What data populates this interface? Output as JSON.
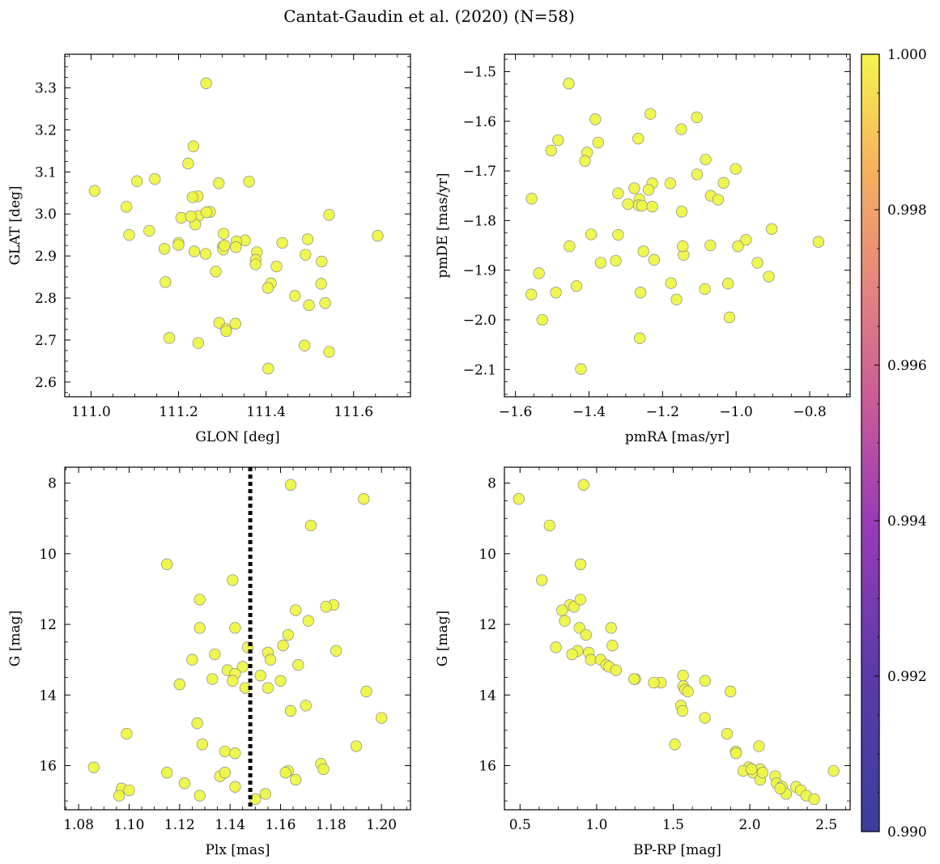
{
  "title": "Cantat-Gaudin et al. (2020) (N=58)",
  "colors": {
    "point": "#eef541",
    "point_edge": "#8a8a8a",
    "vline": "#000000"
  },
  "colorbar": {
    "min": 0.99,
    "max": 1.0,
    "ticks": [
      0.99,
      0.992,
      0.994,
      0.996,
      0.998,
      1.0
    ],
    "tick_labels": [
      "0.990",
      "0.992",
      "0.994",
      "0.996",
      "0.998",
      "1.000"
    ],
    "colormap": "plasma"
  },
  "chart_data": [
    {
      "type": "scatter",
      "xlabel": "GLON [deg]",
      "ylabel": "GLAT [deg]",
      "xlim": [
        110.94,
        111.73
      ],
      "ylim": [
        2.565,
        3.38
      ],
      "xticks": [
        111.0,
        111.2,
        111.4,
        111.6
      ],
      "xtick_labels": [
        "111.0",
        "111.2",
        "111.4",
        "111.6"
      ],
      "yticks": [
        2.6,
        2.7,
        2.8,
        2.9,
        3.0,
        3.1,
        3.2,
        3.3
      ],
      "ytick_labels": [
        "2.6",
        "2.7",
        "2.8",
        "2.9",
        "3.0",
        "3.1",
        "3.2",
        "3.3"
      ],
      "x": [
        111.008,
        111.263,
        111.234,
        111.222,
        111.146,
        111.105,
        111.244,
        111.361,
        111.292,
        111.081,
        111.272,
        111.245,
        111.238,
        111.087,
        111.206,
        111.264,
        111.303,
        111.544,
        111.655,
        111.228,
        111.2,
        111.133,
        111.236,
        111.301,
        111.352,
        111.2,
        111.332,
        111.437,
        111.168,
        111.262,
        111.379,
        111.302,
        111.285,
        111.495,
        111.305,
        111.376,
        111.331,
        111.376,
        111.424,
        111.49,
        111.17,
        111.527,
        111.411,
        111.404,
        111.498,
        111.526,
        111.466,
        111.535,
        111.293,
        111.309,
        111.33,
        111.309,
        111.179,
        111.245,
        111.488,
        111.544,
        111.405,
        111.232
      ],
      "y": [
        3.055,
        3.311,
        3.161,
        3.12,
        3.083,
        3.078,
        3.042,
        3.077,
        3.073,
        3.017,
        3.005,
        2.995,
        2.975,
        2.95,
        2.991,
        3.004,
        2.953,
        2.998,
        2.948,
        2.994,
        2.931,
        2.96,
        2.911,
        2.922,
        2.937,
        2.926,
        2.935,
        2.931,
        2.917,
        2.905,
        2.909,
        2.915,
        2.863,
        2.94,
        2.925,
        2.891,
        2.921,
        2.88,
        2.875,
        2.903,
        2.838,
        2.887,
        2.835,
        2.824,
        2.783,
        2.834,
        2.805,
        2.788,
        2.741,
        2.726,
        2.739,
        2.721,
        2.705,
        2.693,
        2.687,
        2.672,
        2.632,
        3.04
      ],
      "value": 1.0
    },
    {
      "type": "scatter",
      "xlabel": "pmRA [mas/yr]",
      "ylabel": "pmDE [mas/yr]",
      "xlim": [
        -1.63,
        -0.69
      ],
      "ylim": [
        -2.155,
        -1.465
      ],
      "xticks": [
        -1.6,
        -1.4,
        -1.2,
        -1.0,
        -0.8
      ],
      "xtick_labels": [
        "−1.6",
        "−1.4",
        "−1.2",
        "−1.0",
        "−0.8"
      ],
      "yticks": [
        -2.1,
        -2.0,
        -1.9,
        -1.8,
        -1.7,
        -1.6,
        -1.5
      ],
      "ytick_labels": [
        "−2.1",
        "−2.0",
        "−1.9",
        "−1.8",
        "−1.7",
        "−1.6",
        "−1.5"
      ],
      "x": [
        -1.455,
        -1.233,
        -1.107,
        -1.383,
        -1.149,
        -1.484,
        -1.503,
        -1.375,
        -1.405,
        -1.411,
        -1.266,
        -1.083,
        -1.001,
        -1.106,
        -1.228,
        -1.321,
        -1.238,
        -1.277,
        -1.263,
        -1.556,
        -1.148,
        -1.069,
        -1.034,
        -1.049,
        -1.265,
        -1.294,
        -1.256,
        -1.228,
        -1.179,
        -1.143,
        -1.394,
        -0.903,
        -0.776,
        -1.321,
        -0.973,
        -0.995,
        -1.07,
        -1.453,
        -1.252,
        -1.145,
        -1.223,
        -1.368,
        -1.327,
        -0.942,
        -1.536,
        -0.911,
        -1.177,
        -1.085,
        -1.022,
        -1.26,
        -1.49,
        -1.434,
        -1.557,
        -1.162,
        -1.527,
        -1.018,
        -1.262,
        -1.422
      ],
      "y": [
        -1.524,
        -1.585,
        -1.592,
        -1.596,
        -1.616,
        -1.638,
        -1.659,
        -1.643,
        -1.663,
        -1.68,
        -1.635,
        -1.677,
        -1.696,
        -1.707,
        -1.725,
        -1.745,
        -1.738,
        -1.735,
        -1.757,
        -1.756,
        -1.782,
        -1.75,
        -1.724,
        -1.758,
        -1.769,
        -1.767,
        -1.77,
        -1.772,
        -1.725,
        -1.869,
        -1.828,
        -1.817,
        -1.843,
        -1.829,
        -1.839,
        -1.852,
        -1.85,
        -1.852,
        -1.862,
        -1.852,
        -1.879,
        -1.885,
        -1.881,
        -1.885,
        -1.906,
        -1.913,
        -1.926,
        -1.938,
        -1.927,
        -1.945,
        -1.945,
        -1.932,
        -1.949,
        -1.959,
        -2.0,
        -1.995,
        -2.037,
        -2.099
      ],
      "value": 1.0
    },
    {
      "type": "scatter",
      "xlabel": "Plx [mas]",
      "ylabel": "G [mag]",
      "xlim": [
        1.0745,
        1.2115
      ],
      "ylim": [
        17.25,
        7.55
      ],
      "xticks": [
        1.08,
        1.1,
        1.12,
        1.14,
        1.16,
        1.18,
        1.2
      ],
      "xtick_labels": [
        "1.08",
        "1.10",
        "1.12",
        "1.14",
        "1.16",
        "1.18",
        "1.20"
      ],
      "yticks": [
        8,
        10,
        12,
        14,
        16
      ],
      "ytick_labels": [
        "8",
        "10",
        "12",
        "14",
        "16"
      ],
      "vline": {
        "x": 1.148,
        "style": "dotted"
      },
      "x": [
        1.164,
        1.193,
        1.172,
        1.115,
        1.141,
        1.181,
        1.178,
        1.166,
        1.128,
        1.171,
        1.142,
        1.128,
        1.163,
        1.147,
        1.161,
        1.182,
        1.155,
        1.134,
        1.125,
        1.156,
        1.167,
        1.145,
        1.139,
        1.12,
        1.142,
        1.152,
        1.141,
        1.16,
        1.133,
        1.194,
        1.155,
        1.17,
        1.164,
        1.2,
        1.127,
        1.099,
        1.129,
        1.19,
        1.138,
        1.142,
        1.176,
        1.086,
        1.177,
        1.163,
        1.136,
        1.115,
        1.166,
        1.138,
        1.122,
        1.142,
        1.162,
        1.097,
        1.1,
        1.096,
        1.154,
        1.128,
        1.15,
        1.146
      ],
      "y": [
        8.05,
        8.45,
        9.2,
        10.3,
        10.75,
        11.45,
        11.5,
        11.6,
        11.3,
        11.9,
        12.1,
        12.1,
        12.3,
        12.65,
        12.6,
        12.75,
        12.8,
        12.85,
        13.0,
        13.0,
        13.15,
        13.2,
        13.3,
        13.7,
        13.4,
        13.45,
        13.6,
        13.6,
        13.55,
        13.9,
        13.8,
        14.3,
        14.45,
        14.65,
        14.8,
        15.1,
        15.4,
        15.45,
        15.6,
        15.65,
        15.95,
        16.05,
        16.1,
        16.15,
        16.3,
        16.2,
        16.4,
        16.2,
        16.5,
        16.6,
        16.2,
        16.65,
        16.7,
        16.85,
        16.8,
        16.85,
        16.95,
        13.8
      ],
      "value": 1.0
    },
    {
      "type": "scatter",
      "xlabel": "BP-RP [mag]",
      "ylabel": "G [mag]",
      "xlim": [
        0.398,
        2.655
      ],
      "ylim": [
        17.25,
        7.55
      ],
      "xticks": [
        0.5,
        1.0,
        1.5,
        2.0,
        2.5
      ],
      "xtick_labels": [
        "0.5",
        "1.0",
        "1.5",
        "2.0",
        "2.5"
      ],
      "yticks": [
        8,
        10,
        12,
        14,
        16
      ],
      "ytick_labels": [
        "8",
        "10",
        "12",
        "14",
        "16"
      ],
      "x": [
        0.915,
        0.492,
        0.693,
        0.895,
        0.642,
        0.826,
        0.853,
        0.775,
        0.894,
        0.792,
        0.888,
        1.094,
        0.931,
        0.734,
        1.103,
        0.876,
        0.949,
        0.84,
        0.962,
        1.026,
        1.063,
        1.082,
        1.127,
        1.564,
        1.252,
        1.245,
        1.419,
        1.373,
        1.565,
        1.708,
        1.577,
        1.596,
        1.874,
        1.551,
        1.561,
        1.707,
        1.511,
        1.852,
        1.908,
        2.06,
        1.91,
        1.993,
        2.067,
        1.957,
        2.022,
        2.068,
        2.011,
        2.084,
        2.166,
        2.175,
        2.21,
        2.302,
        2.237,
        2.333,
        2.369,
        2.547,
        2.421,
        2.198
      ],
      "y": [
        8.05,
        8.45,
        9.2,
        10.3,
        10.75,
        11.45,
        11.5,
        11.6,
        11.3,
        11.9,
        12.1,
        12.1,
        12.3,
        12.65,
        12.6,
        12.75,
        12.8,
        12.85,
        13.0,
        13.0,
        13.15,
        13.2,
        13.3,
        13.45,
        13.55,
        13.55,
        13.65,
        13.65,
        13.75,
        13.6,
        13.85,
        13.9,
        13.9,
        14.3,
        14.45,
        14.65,
        15.4,
        15.1,
        15.6,
        15.45,
        15.65,
        16.05,
        16.1,
        16.15,
        16.2,
        16.4,
        16.1,
        16.2,
        16.3,
        16.5,
        16.6,
        16.6,
        16.8,
        16.7,
        16.85,
        16.15,
        16.95,
        16.65
      ],
      "value": 1.0
    }
  ]
}
